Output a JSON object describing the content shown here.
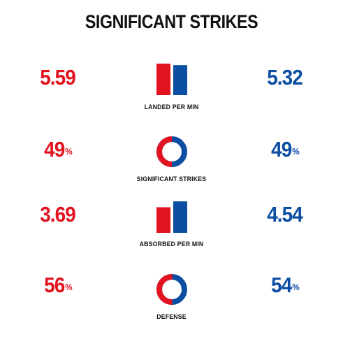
{
  "header": {
    "title": "SIGNIFICANT STRIKES"
  },
  "colors": {
    "red": "#e1131f",
    "blue": "#0b4ea2",
    "text": "#111111"
  },
  "chart_data": {
    "type": "comparison",
    "title": "SIGNIFICANT STRIKES",
    "series": [
      {
        "color": "#e1131f"
      },
      {
        "color": "#0b4ea2"
      }
    ],
    "metrics": [
      {
        "label": "LANDED PER MIN",
        "kind": "bar",
        "red": 5.59,
        "blue": 5.32,
        "red_text": "5.59",
        "blue_text": "5.32",
        "suffix": ""
      },
      {
        "label": "SIGNIFICANT STRIKES",
        "kind": "donut",
        "red": 49,
        "blue": 49,
        "red_text": "49",
        "blue_text": "49",
        "suffix": "%"
      },
      {
        "label": "ABSORBED PER MIN",
        "kind": "bar",
        "red": 3.69,
        "blue": 4.54,
        "red_text": "3.69",
        "blue_text": "4.54",
        "suffix": ""
      },
      {
        "label": "DEFENSE",
        "kind": "donut",
        "red": 56,
        "blue": 54,
        "red_text": "56",
        "blue_text": "54",
        "suffix": "%"
      }
    ]
  }
}
